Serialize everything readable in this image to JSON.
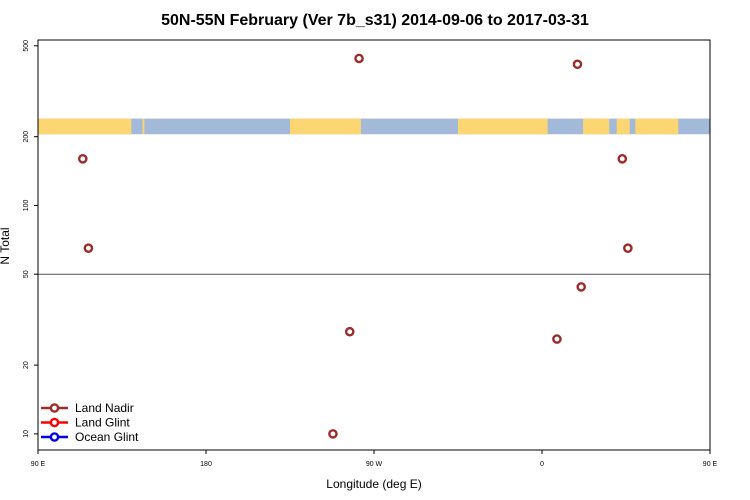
{
  "chart_data": {
    "type": "scatter",
    "title": "50N-55N February (Ver 7b_s31)   2014-09-06 to 2017-03-31",
    "xlabel": "Longitude (deg E)",
    "ylabel": "N Total",
    "x_scale": "longitude, centered on the 180th meridian",
    "y_scale": "log",
    "xlim": [
      90,
      450
    ],
    "ylim": [
      8.5,
      530
    ],
    "x_ticks": [
      {
        "value": 90,
        "label": "90 E"
      },
      {
        "value": 180,
        "label": "180"
      },
      {
        "value": 270,
        "label": "90 W"
      },
      {
        "value": 360,
        "label": "0"
      },
      {
        "value": 450,
        "label": "90 E"
      },
      {
        "value": 540,
        "label": "180"
      }
    ],
    "y_ticks": [
      {
        "value": 10,
        "label": "10"
      },
      {
        "value": 20,
        "label": "20"
      },
      {
        "value": 50,
        "label": "50"
      },
      {
        "value": 100,
        "label": "100"
      },
      {
        "value": 200,
        "label": "200"
      },
      {
        "value": 500,
        "label": "500"
      }
    ],
    "reference_line": {
      "y": 50
    },
    "land_mask_band": {
      "y_range": [
        205,
        240
      ],
      "land_color": "#fcd672",
      "ocean_color": "#a3b9d9",
      "land_segments_lon": [
        [
          90,
          140
        ],
        [
          146,
          147
        ],
        [
          225,
          263
        ],
        [
          315,
          363
        ],
        [
          382,
          396
        ],
        [
          400,
          407
        ],
        [
          410,
          433
        ]
      ]
    },
    "series": [
      {
        "name": "Land Nadir",
        "color": "#9e2a2a",
        "points": [
          {
            "x": 114,
            "y": 160
          },
          {
            "x": 117,
            "y": 65
          },
          {
            "x": 248,
            "y": 10
          },
          {
            "x": 257,
            "y": 28
          },
          {
            "x": 262,
            "y": 440
          },
          {
            "x": 368,
            "y": 26
          },
          {
            "x": 379,
            "y": 415
          },
          {
            "x": 381,
            "y": 44
          },
          {
            "x": 403,
            "y": 160
          },
          {
            "x": 406,
            "y": 65
          }
        ]
      },
      {
        "name": "Land Glint",
        "color": "#ff0000",
        "points": []
      },
      {
        "name": "Ocean Glint",
        "color": "#0000ee",
        "points": []
      }
    ],
    "legend_position": "bottom-left",
    "grid": false
  }
}
